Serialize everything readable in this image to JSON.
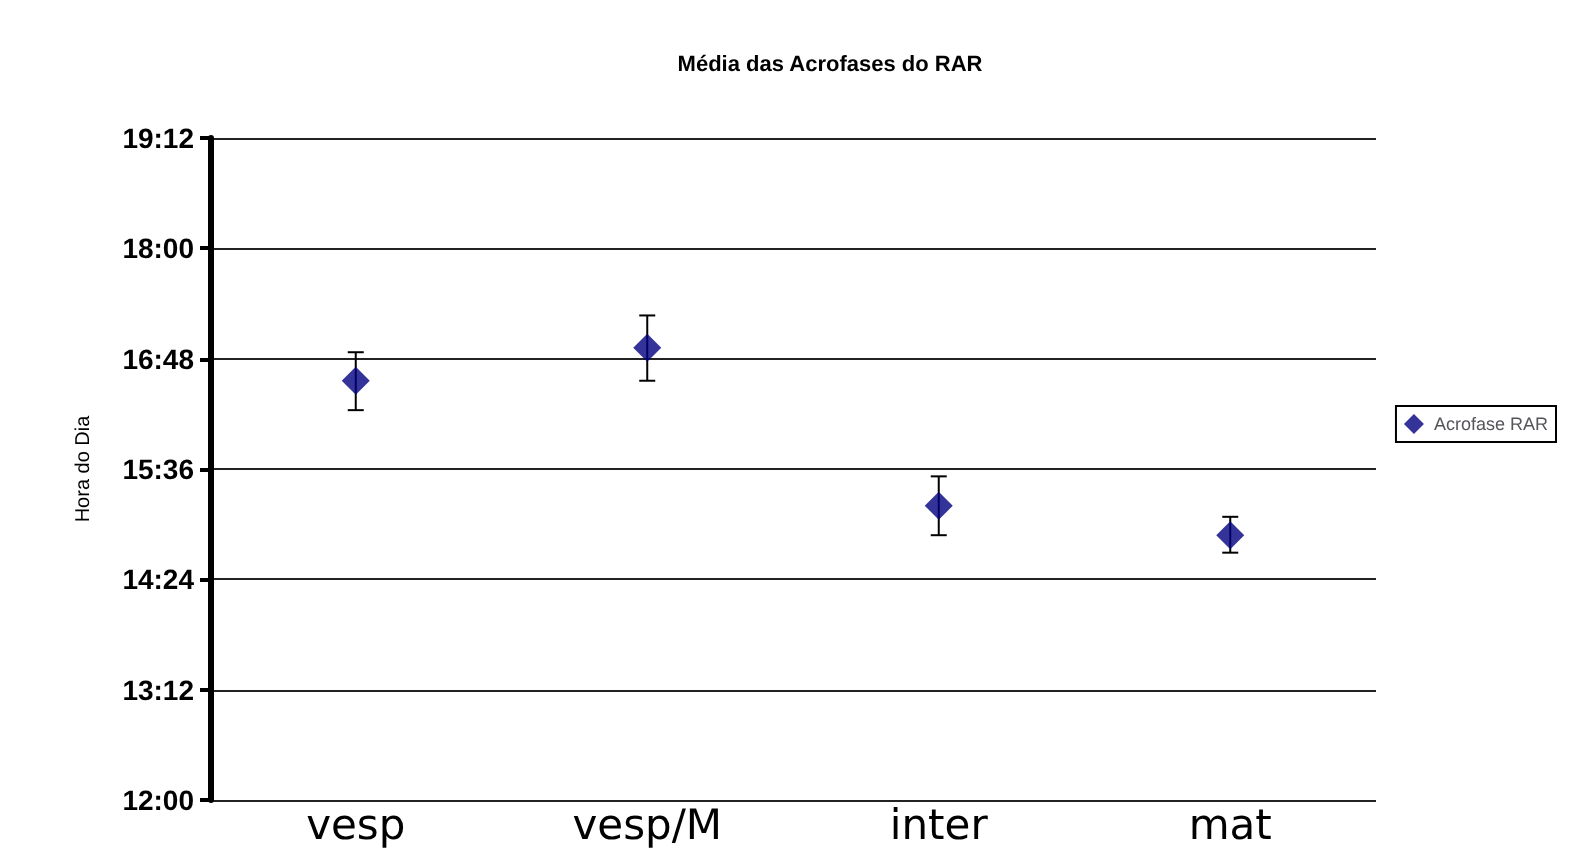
{
  "chart_data": {
    "type": "scatter",
    "title": "Média das Acrofases do RAR",
    "ylabel": "Hora do Dia",
    "categories": [
      "vesp",
      "vesp/M",
      "inter",
      "mat"
    ],
    "series": [
      {
        "name": "Acrofase RAR",
        "color": "#000080",
        "values": [
          16.56,
          16.92,
          15.2,
          14.88
        ],
        "errors": [
          [
            16.24,
            16.87
          ],
          [
            16.56,
            17.27
          ],
          [
            14.88,
            15.52
          ],
          [
            14.69,
            15.08
          ]
        ]
      }
    ],
    "ylim": [
      12,
      19.2
    ],
    "yticks": [
      {
        "value": 12,
        "label": "12:00"
      },
      {
        "value": 13.2,
        "label": "13:12"
      },
      {
        "value": 14.4,
        "label": "14:24"
      },
      {
        "value": 15.6,
        "label": "15:36"
      },
      {
        "value": 16.8,
        "label": "16:48"
      },
      {
        "value": 18,
        "label": "18:00"
      },
      {
        "value": 19.2,
        "label": "19:12"
      }
    ],
    "grid": "y",
    "legend": "right",
    "marker": "diamond"
  }
}
